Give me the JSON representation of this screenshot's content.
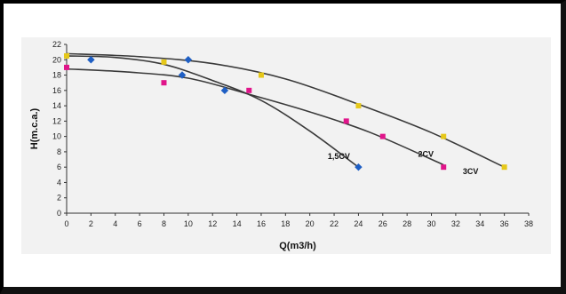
{
  "chart_data": {
    "type": "line",
    "title": "",
    "xlabel": "Q(m3/h)",
    "ylabel": "H(m.c.a.)",
    "xlim": [
      0,
      38
    ],
    "ylim": [
      0,
      22
    ],
    "x_ticks": [
      0,
      2,
      4,
      6,
      8,
      10,
      12,
      14,
      16,
      18,
      20,
      22,
      24,
      26,
      28,
      30,
      32,
      34,
      36,
      38
    ],
    "y_ticks": [
      0,
      2,
      4,
      6,
      8,
      10,
      12,
      14,
      16,
      18,
      20,
      22
    ],
    "grid": false,
    "series": [
      {
        "name": "1,5CV",
        "color": "#1f5fc4",
        "curve": [
          [
            0,
            20.5
          ],
          [
            4,
            20.3
          ],
          [
            8,
            19.4
          ],
          [
            12,
            17.3
          ],
          [
            16,
            14.7
          ],
          [
            20,
            10.7
          ],
          [
            24,
            6
          ]
        ],
        "points": [
          [
            2,
            20
          ],
          [
            9.5,
            18
          ],
          [
            10,
            20
          ],
          [
            13,
            16
          ],
          [
            24,
            6
          ]
        ]
      },
      {
        "name": "2CV",
        "color": "#e0158a",
        "curve": [
          [
            0,
            18.8
          ],
          [
            5,
            18.4
          ],
          [
            10,
            17.6
          ],
          [
            15,
            15.5
          ],
          [
            20,
            13.2
          ],
          [
            25,
            10.5
          ],
          [
            31,
            6.3
          ]
        ],
        "points": [
          [
            0,
            19
          ],
          [
            8,
            17
          ],
          [
            15,
            16
          ],
          [
            23,
            12
          ],
          [
            26,
            10
          ],
          [
            31,
            6
          ]
        ]
      },
      {
        "name": "3CV",
        "color": "#e6c81a",
        "curve": [
          [
            0,
            20.8
          ],
          [
            6,
            20.4
          ],
          [
            12,
            19.5
          ],
          [
            18,
            17.5
          ],
          [
            24,
            14.2
          ],
          [
            30,
            10.5
          ],
          [
            36,
            6
          ]
        ],
        "points": [
          [
            0,
            20.5
          ],
          [
            8,
            19.7
          ],
          [
            16,
            18
          ],
          [
            24,
            14
          ],
          [
            31,
            10
          ],
          [
            36,
            6
          ]
        ]
      }
    ]
  }
}
